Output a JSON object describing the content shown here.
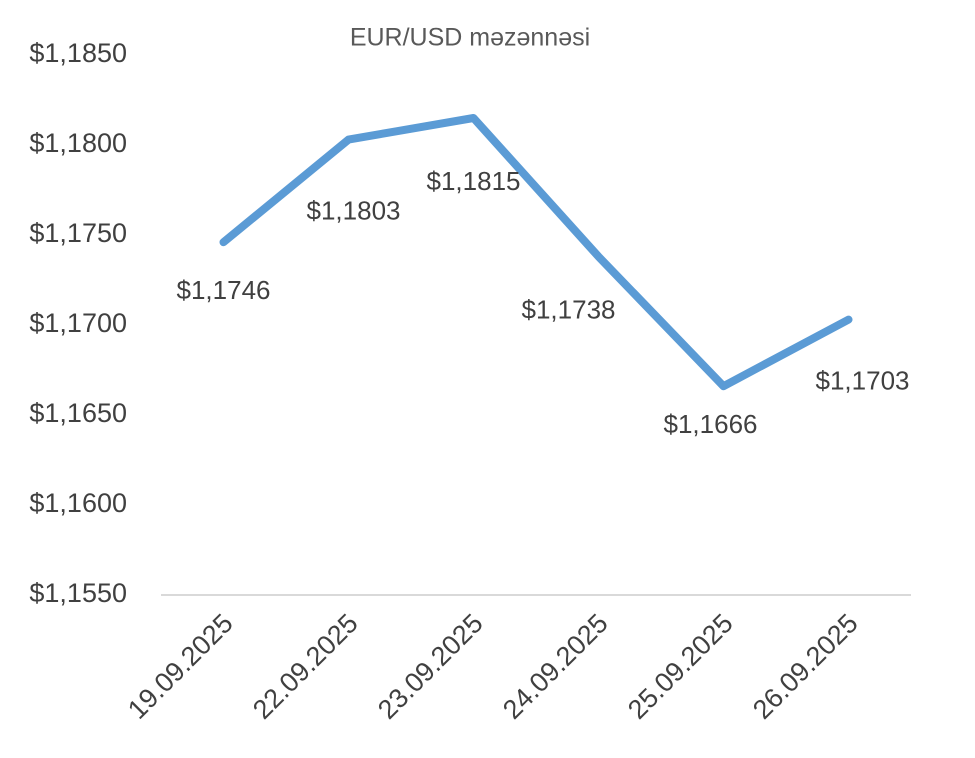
{
  "chart_data": {
    "type": "line",
    "title": "EUR/USD məzənnəsi",
    "categories": [
      "19.09.2025",
      "22.09.2025",
      "23.09.2025",
      "24.09.2025",
      "25.09.2025",
      "26.09.2025"
    ],
    "series": [
      {
        "name": "EUR/USD",
        "color": "#5b9bd5",
        "values": [
          1.1746,
          1.1803,
          1.1815,
          1.1738,
          1.1666,
          1.1703
        ],
        "value_labels": [
          "$1,1746",
          "$1,1803",
          "$1,1815",
          "$1,1738",
          "$1,1666",
          "$1,1703"
        ]
      }
    ],
    "ylim": [
      1.155,
      1.185
    ],
    "yticks": [
      {
        "value": 1.155,
        "label": "$1,1550"
      },
      {
        "value": 1.16,
        "label": "$1,1600"
      },
      {
        "value": 1.165,
        "label": "$1,1650"
      },
      {
        "value": 1.17,
        "label": "$1,1700"
      },
      {
        "value": 1.175,
        "label": "$1,1750"
      },
      {
        "value": 1.18,
        "label": "$1,1800"
      },
      {
        "value": 1.185,
        "label": "$1,1850"
      }
    ],
    "grid": false
  }
}
